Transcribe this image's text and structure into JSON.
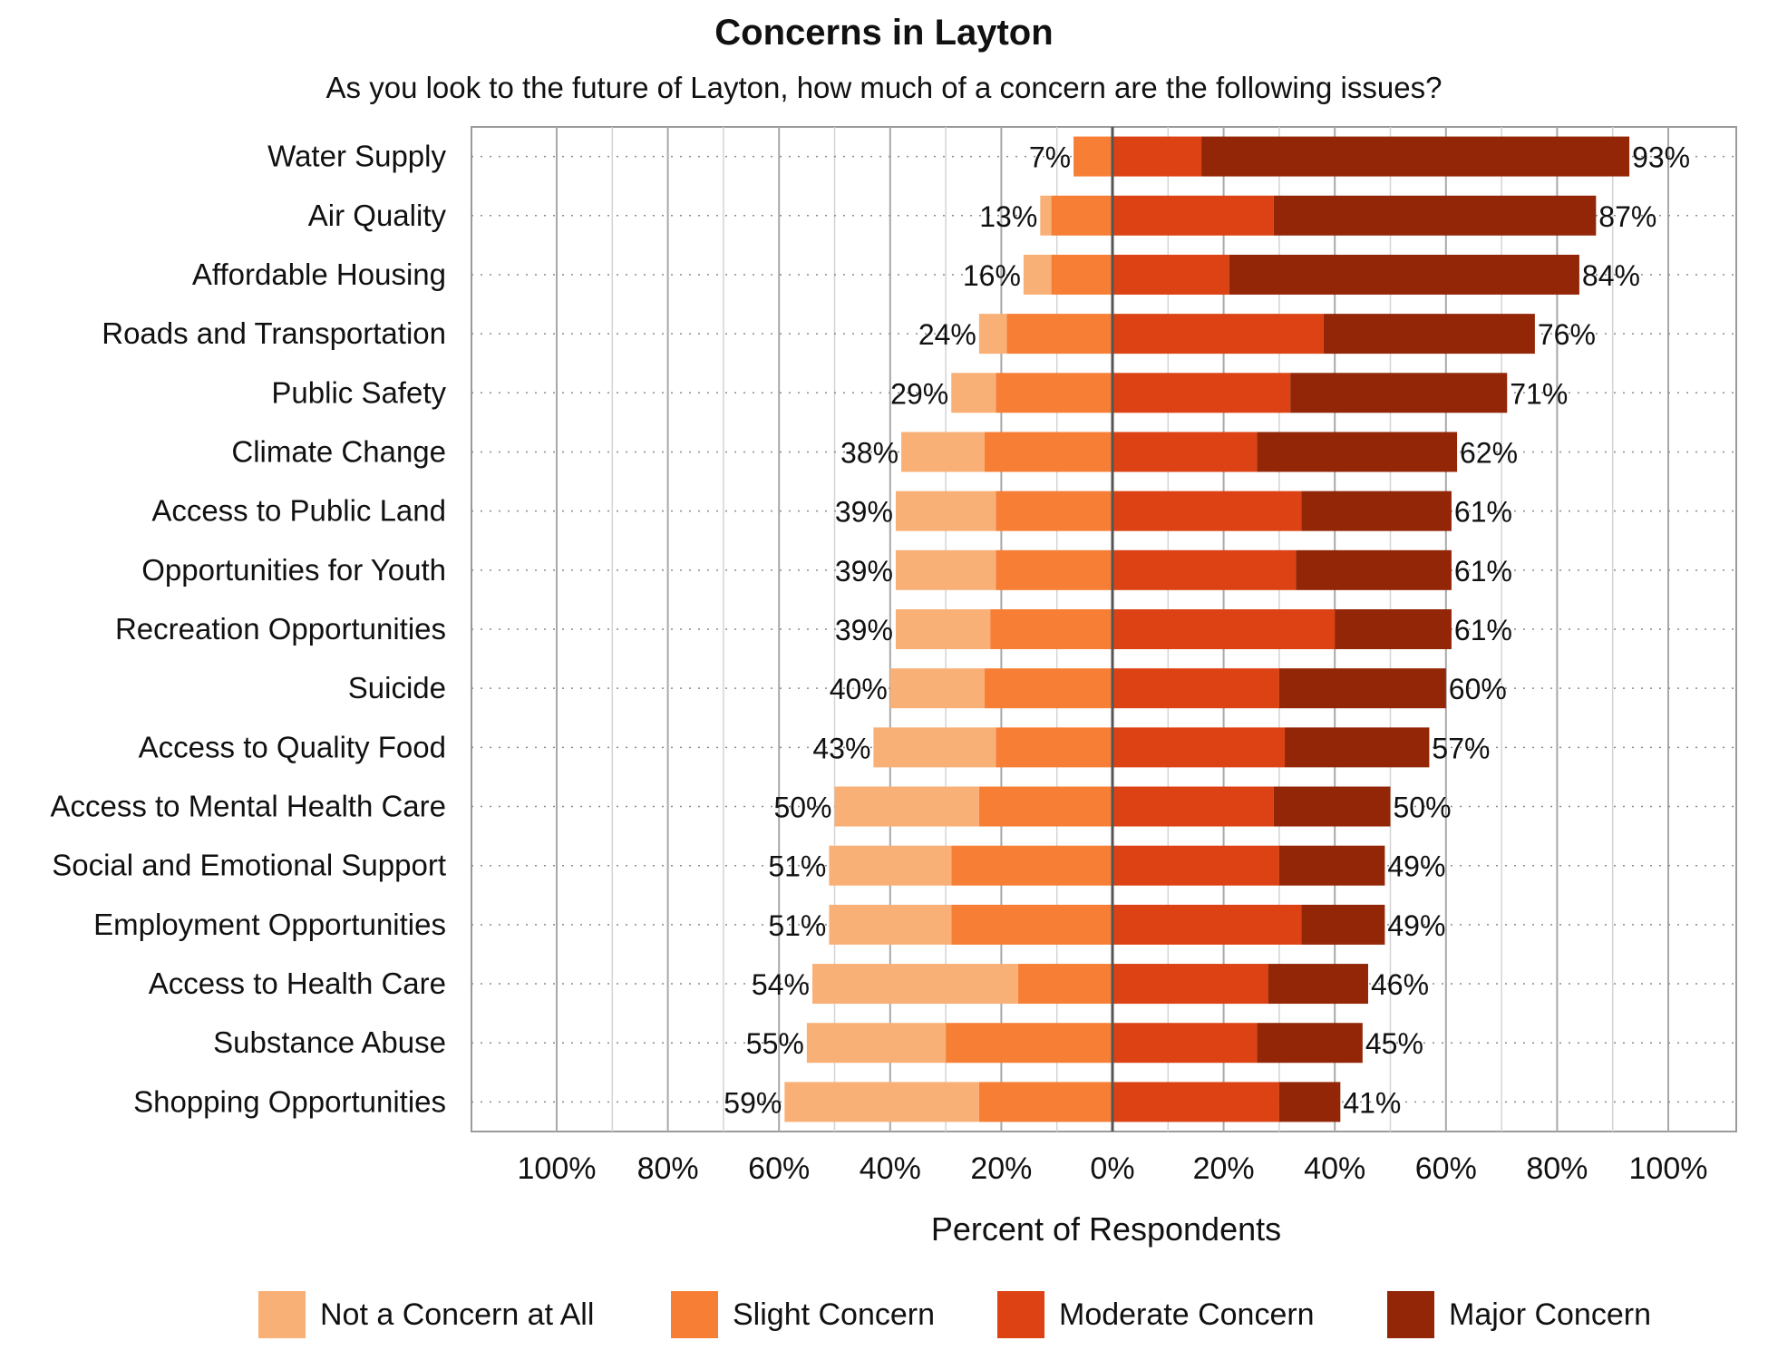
{
  "chart_data": {
    "type": "bar",
    "orientation": "horizontal-diverging",
    "title": "Concerns in Layton",
    "subtitle": "As you look to the future of Layton, how much of a concern are the following issues?",
    "xlabel": "Percent of Respondents",
    "ylabel": "",
    "xlim": [
      -100,
      100
    ],
    "xticks": [
      "100%",
      "80%",
      "60%",
      "40%",
      "20%",
      "0%",
      "20%",
      "40%",
      "60%",
      "80%",
      "100%"
    ],
    "grid": true,
    "legend_position": "bottom",
    "categories": [
      "Water Supply",
      "Air Quality",
      "Affordable Housing",
      "Roads and Transportation",
      "Public Safety",
      "Climate Change",
      "Access to Public Land",
      "Opportunities for Youth",
      "Recreation Opportunities",
      "Suicide",
      "Access to Quality Food",
      "Access to Mental Health Care",
      "Social and Emotional Support",
      "Employment Opportunities",
      "Access to Health Care",
      "Substance Abuse",
      "Shopping Opportunities"
    ],
    "series": [
      {
        "name": "Not a Concern at All",
        "color": "#F9B077",
        "side": "negative",
        "values": [
          0,
          2,
          5,
          5,
          8,
          15,
          18,
          18,
          17,
          17,
          22,
          26,
          22,
          22,
          37,
          25,
          35
        ]
      },
      {
        "name": "Slight Concern",
        "color": "#F77E35",
        "side": "negative",
        "values": [
          7,
          11,
          11,
          19,
          21,
          23,
          21,
          21,
          22,
          23,
          21,
          24,
          29,
          29,
          17,
          30,
          24
        ]
      },
      {
        "name": "Moderate Concern",
        "color": "#DC4213",
        "side": "positive",
        "values": [
          16,
          29,
          21,
          38,
          32,
          26,
          34,
          33,
          40,
          30,
          31,
          29,
          30,
          34,
          28,
          26,
          30
        ]
      },
      {
        "name": "Major Concern",
        "color": "#922607",
        "side": "positive",
        "values": [
          77,
          58,
          63,
          38,
          39,
          36,
          27,
          28,
          21,
          30,
          26,
          21,
          19,
          15,
          18,
          19,
          11
        ]
      }
    ],
    "negative_totals": [
      "7%",
      "13%",
      "16%",
      "24%",
      "29%",
      "38%",
      "39%",
      "39%",
      "39%",
      "40%",
      "43%",
      "50%",
      "51%",
      "51%",
      "54%",
      "55%",
      "59%"
    ],
    "positive_totals": [
      "93%",
      "87%",
      "84%",
      "76%",
      "71%",
      "62%",
      "61%",
      "61%",
      "61%",
      "60%",
      "57%",
      "50%",
      "49%",
      "49%",
      "46%",
      "45%",
      "41%"
    ],
    "negative_total_values": [
      7,
      13,
      16,
      24,
      29,
      38,
      39,
      39,
      39,
      40,
      43,
      50,
      51,
      51,
      54,
      55,
      59
    ],
    "positive_total_values": [
      93,
      87,
      84,
      76,
      71,
      62,
      61,
      61,
      61,
      60,
      57,
      50,
      49,
      49,
      46,
      45,
      41
    ]
  }
}
